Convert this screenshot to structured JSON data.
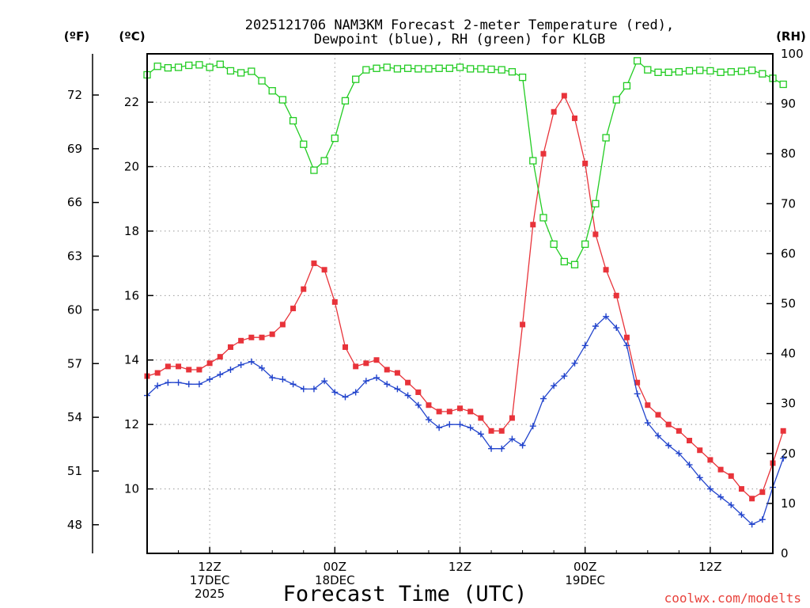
{
  "chart_data": {
    "type": "line",
    "title": {
      "line1": "2025121706 NAM3KM Forecast 2-meter Temperature (red),",
      "line2": "Dewpoint (blue), RH (green) for KLGB"
    },
    "unit_labels": {
      "fahrenheit": "(ºF)",
      "celsius": "(ºC)",
      "rh": "(RH)"
    },
    "xlabel": "Forecast Time (UTC)",
    "watermark": "coolwx.com/modelts",
    "x_range_hours": [
      0,
      60
    ],
    "celsius_range": [
      8,
      23.5
    ],
    "rh_range": [
      0,
      100
    ],
    "celsius_ticks": [
      "10",
      "12",
      "14",
      "16",
      "18",
      "20",
      "22"
    ],
    "fahrenheit_ticks": [
      "48",
      "51",
      "54",
      "57",
      "60",
      "63",
      "66",
      "69",
      "72"
    ],
    "rh_ticks": [
      "0",
      "10",
      "20",
      "30",
      "40",
      "50",
      "60",
      "70",
      "80",
      "90",
      "100"
    ],
    "x_ticks": [
      {
        "hour": 6,
        "line1": "12Z",
        "line2": "17DEC",
        "line3": "2025"
      },
      {
        "hour": 18,
        "line1": "00Z",
        "line2": "18DEC",
        "line3": ""
      },
      {
        "hour": 30,
        "line1": "12Z",
        "line2": "",
        "line3": ""
      },
      {
        "hour": 42,
        "line1": "00Z",
        "line2": "19DEC",
        "line3": ""
      },
      {
        "hour": 54,
        "line1": "12Z",
        "line2": "",
        "line3": ""
      }
    ],
    "series": [
      {
        "name": "Temperature",
        "unit": "C",
        "color": "#e8333a",
        "marker": "filled-square",
        "values": [
          13.5,
          13.6,
          13.8,
          13.8,
          13.7,
          13.7,
          13.9,
          14.1,
          14.4,
          14.6,
          14.7,
          14.7,
          14.8,
          15.1,
          15.6,
          16.2,
          17.0,
          16.8,
          15.8,
          14.4,
          13.8,
          13.9,
          14.0,
          13.7,
          13.6,
          13.3,
          13.0,
          12.6,
          12.4,
          12.4,
          12.5,
          12.4,
          12.2,
          11.8,
          11.8,
          12.2,
          15.1,
          18.2,
          20.4,
          21.7,
          22.2,
          21.5,
          20.1,
          17.9,
          16.8,
          16.0,
          14.7,
          13.3,
          12.6,
          12.3,
          12.0,
          11.8,
          11.5,
          11.2,
          10.9,
          10.6,
          10.4,
          10.0,
          9.7,
          9.9,
          10.8,
          11.8
        ]
      },
      {
        "name": "Dewpoint",
        "unit": "C",
        "color": "#2244cc",
        "marker": "plus",
        "values": [
          12.9,
          13.2,
          13.3,
          13.3,
          13.25,
          13.25,
          13.4,
          13.55,
          13.7,
          13.85,
          13.95,
          13.75,
          13.45,
          13.4,
          13.25,
          13.1,
          13.1,
          13.35,
          13.0,
          12.85,
          13.0,
          13.35,
          13.45,
          13.25,
          13.1,
          12.9,
          12.6,
          12.15,
          11.9,
          12.0,
          12.0,
          11.9,
          11.7,
          11.25,
          11.25,
          11.55,
          11.35,
          11.95,
          12.8,
          13.2,
          13.5,
          13.9,
          14.45,
          15.05,
          15.35,
          15.0,
          14.45,
          12.95,
          12.05,
          11.65,
          11.35,
          11.1,
          10.75,
          10.35,
          10.0,
          9.75,
          9.5,
          9.2,
          8.9,
          9.05,
          10.05,
          10.95
        ]
      },
      {
        "name": "RH",
        "unit": "%",
        "color": "#22cc22",
        "marker": "open-square",
        "values": [
          95.8,
          97.5,
          97.2,
          97.3,
          97.7,
          97.8,
          97.3,
          97.9,
          96.6,
          96.2,
          96.5,
          94.6,
          92.6,
          90.8,
          86.6,
          81.9,
          76.7,
          78.6,
          83.1,
          90.6,
          94.9,
          96.8,
          97.1,
          97.3,
          97.0,
          97.1,
          97.0,
          97.0,
          97.1,
          97.1,
          97.3,
          97.0,
          97.0,
          96.9,
          96.8,
          96.4,
          95.3,
          78.6,
          67.2,
          61.9,
          58.4,
          57.8,
          61.9,
          70.0,
          83.2,
          90.8,
          93.6,
          98.6,
          96.8,
          96.3,
          96.3,
          96.4,
          96.6,
          96.7,
          96.6,
          96.3,
          96.4,
          96.5,
          96.7,
          96.0,
          95.1,
          93.9
        ]
      }
    ]
  }
}
